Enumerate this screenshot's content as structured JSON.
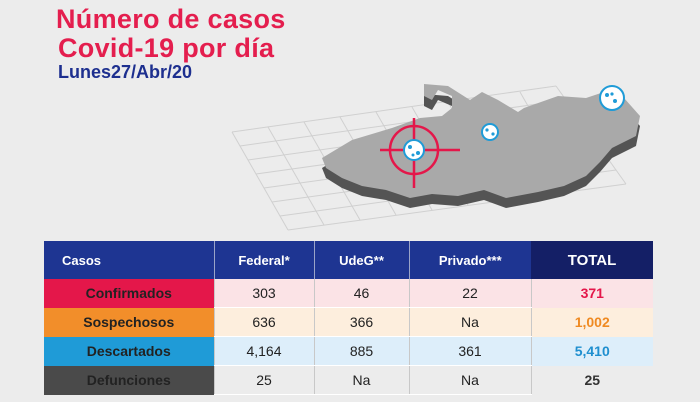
{
  "header": {
    "title_line1": "Número de casos",
    "title_line2": "Covid-19 por día",
    "date": "Lunes27/Abr/20"
  },
  "colors": {
    "brand_red": "#e4174a",
    "brand_blue": "#1e3592",
    "orange": "#f28e2a",
    "light_blue": "#1f9bd7",
    "dark_gray": "#4a4a4a"
  },
  "illustration": {
    "map_icon": "jalisco-map-icon",
    "virus_icon": "virus-icon",
    "target_icon": "crosshair-target-icon"
  },
  "table": {
    "headers": [
      "Casos",
      "Federal*",
      "UdeG**",
      "Privado***",
      "TOTAL"
    ],
    "rows": [
      {
        "label": "Confirmados",
        "federal": "303",
        "udeg": "46",
        "privado": "22",
        "total": "371"
      },
      {
        "label": "Sospechosos",
        "federal": "636",
        "udeg": "366",
        "privado": "Na",
        "total": "1,002"
      },
      {
        "label": "Descartados",
        "federal": "4,164",
        "udeg": "885",
        "privado": "361",
        "total": "5,410"
      },
      {
        "label": "Defunciones",
        "federal": "25",
        "udeg": "Na",
        "privado": "Na",
        "total": "25"
      }
    ]
  }
}
